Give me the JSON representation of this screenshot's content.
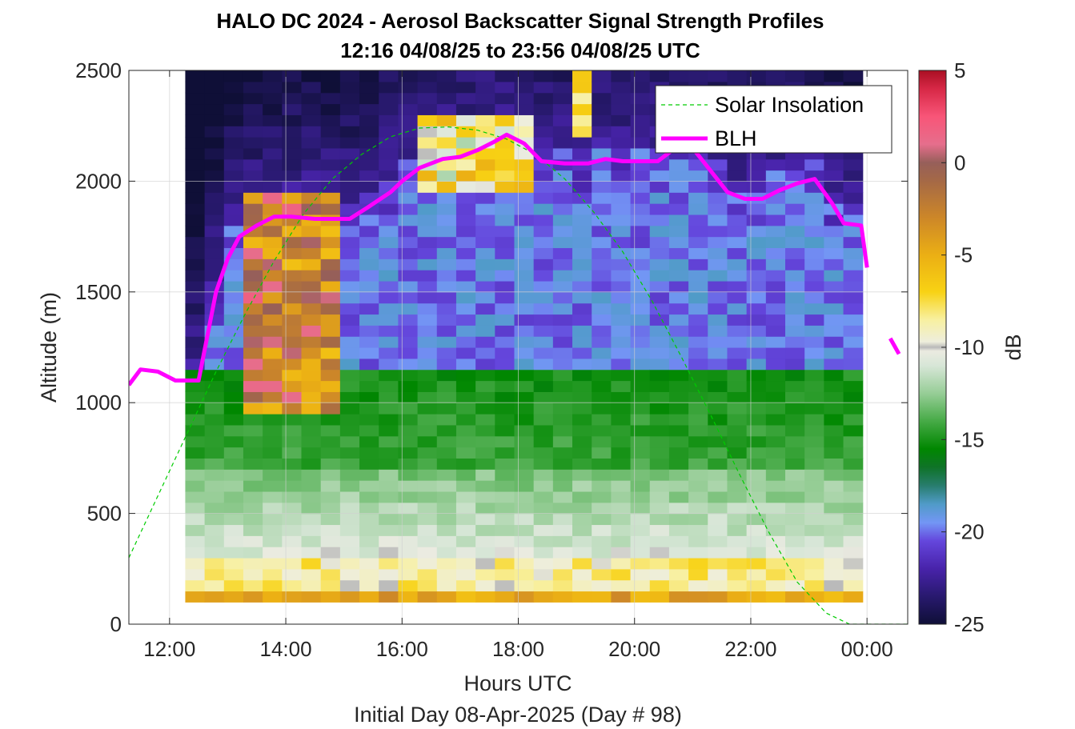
{
  "chart_data": {
    "type": "heatmap",
    "title": "HALO DC 2024 - Aerosol Backscatter Signal Strength Profiles",
    "subtitle": "12:16 04/08/25 to 23:56 04/08/25  UTC",
    "xlabel": "Hours UTC",
    "xlabel2": "Initial Day 08-Apr-2025 (Day # 98)",
    "ylabel": "Altitude (m)",
    "xlim": [
      11.3,
      24.7
    ],
    "ylim": [
      0,
      2500
    ],
    "x_ticks": [
      12,
      14,
      16,
      18,
      20,
      22,
      24
    ],
    "x_tick_labels": [
      "12:00",
      "14:00",
      "16:00",
      "18:00",
      "20:00",
      "22:00",
      "00:00"
    ],
    "y_ticks": [
      0,
      500,
      1000,
      1500,
      2000,
      2500
    ],
    "y_tick_labels": [
      "0",
      "500",
      "1000",
      "1500",
      "2000",
      "2500"
    ],
    "grid": true,
    "colorbar": {
      "label": "dB",
      "range": [
        -25,
        5
      ],
      "ticks": [
        5,
        0,
        -5,
        -10,
        -15,
        -20,
        -25
      ],
      "tick_labels": [
        "5",
        "0",
        "-5",
        "-10",
        "-15",
        "-20",
        "-25"
      ]
    },
    "heatmap": {
      "time_start": 12.27,
      "time_step": 0.333,
      "n_cols": 35,
      "alt_start": 100,
      "alt_step": 50,
      "n_rows": 48,
      "cells": "approximate backscatter field in dB (generated)"
    },
    "legend": {
      "placement": "top-right",
      "entries": [
        "Solar Insolation",
        "BLH"
      ]
    },
    "series": [
      {
        "name": "BLH",
        "color": "#ff00ff",
        "x": [
          11.3,
          11.5,
          11.8,
          12.1,
          12.5,
          12.8,
          13.0,
          13.2,
          13.5,
          13.8,
          14.1,
          14.5,
          14.8,
          15.1,
          15.4,
          15.8,
          16.0,
          16.3,
          16.7,
          17.0,
          17.3,
          17.6,
          17.8,
          18.1,
          18.4,
          18.8,
          19.2,
          19.5,
          19.8,
          20.1,
          20.4,
          20.7,
          21.0,
          21.3,
          21.6,
          21.9,
          22.2,
          22.5,
          22.8,
          23.1,
          23.4,
          23.6,
          23.9,
          24.0
        ],
        "y": [
          1080,
          1150,
          1140,
          1100,
          1100,
          1500,
          1650,
          1750,
          1800,
          1840,
          1840,
          1830,
          1830,
          1830,
          1880,
          1950,
          2000,
          2060,
          2100,
          2110,
          2140,
          2180,
          2210,
          2170,
          2090,
          2080,
          2080,
          2100,
          2090,
          2090,
          2090,
          2150,
          2150,
          2050,
          1950,
          1920,
          1920,
          1960,
          1990,
          2010,
          1900,
          1810,
          1800,
          1610
        ],
        "x2": [
          24.4,
          24.55
        ],
        "y2": [
          1290,
          1220
        ]
      },
      {
        "name": "Solar Insolation",
        "color": "#00cc00",
        "style": "dashed",
        "x": [
          11.3,
          11.8,
          12.3,
          12.8,
          13.3,
          13.8,
          14.3,
          14.8,
          15.3,
          15.8,
          16.3,
          16.8,
          17.3,
          17.8,
          18.3,
          18.8,
          19.3,
          19.8,
          20.3,
          20.8,
          21.3,
          21.8,
          22.3,
          22.8,
          23.3,
          23.7,
          24.7
        ],
        "y": [
          300,
          580,
          860,
          1140,
          1400,
          1640,
          1850,
          2010,
          2120,
          2200,
          2240,
          2245,
          2230,
          2190,
          2120,
          2010,
          1860,
          1680,
          1460,
          1210,
          950,
          680,
          420,
          190,
          50,
          0,
          0
        ]
      }
    ]
  }
}
